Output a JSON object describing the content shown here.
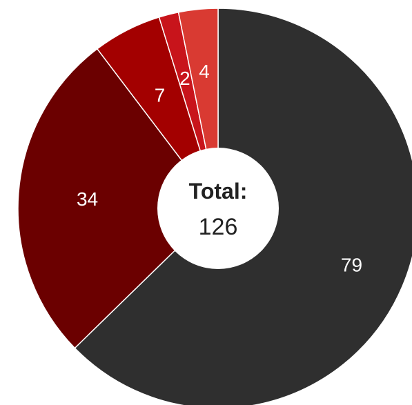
{
  "chart_data": {
    "type": "pie",
    "donut": true,
    "title": "",
    "center_label": "Total:",
    "center_value": "126",
    "slices": [
      {
        "value": 79,
        "label": "79",
        "color": "#2f2f2f"
      },
      {
        "value": 34,
        "label": "34",
        "color": "#6b0000"
      },
      {
        "value": 7,
        "label": "7",
        "color": "#a30000"
      },
      {
        "value": 2,
        "label": "2",
        "color": "#c8141b"
      },
      {
        "value": 4,
        "label": "4",
        "color": "#d93a32"
      }
    ]
  }
}
